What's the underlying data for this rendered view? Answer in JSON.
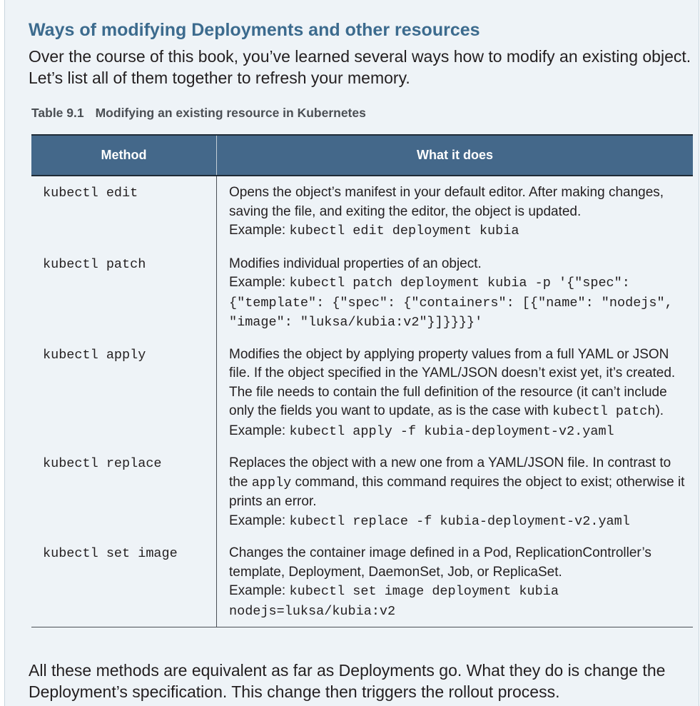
{
  "heading": "Ways of modifying Deployments and other resources",
  "intro": "Over the course of this book, you’ve learned several ways how to modify an existing object. Let’s list all of them together to refresh your memory.",
  "caption": {
    "number": "Table 9.1",
    "title": "Modifying an existing resource in Kubernetes"
  },
  "table": {
    "headers": [
      "Method",
      "What it does"
    ],
    "rows": [
      {
        "method": "kubectl edit",
        "desc": [
          {
            "t": "Opens the object’s manifest in your default editor. After making changes, saving the file, and exiting the editor, the object is updated."
          },
          {
            "br": true
          },
          {
            "t": "Example: "
          },
          {
            "c": "kubectl edit deployment kubia"
          }
        ]
      },
      {
        "method": "kubectl patch",
        "desc": [
          {
            "t": "Modifies individual properties of an object."
          },
          {
            "br": true
          },
          {
            "t": "Example: "
          },
          {
            "c": "kubectl patch deployment kubia -p '{\"spec\": {\"template\": {\"spec\": {\"containers\": [{\"name\": \"nodejs\", \"image\": \"luksa/kubia:v2\"}]}}}}'"
          }
        ]
      },
      {
        "method": "kubectl apply",
        "desc": [
          {
            "t": "Modifies the object by applying property values from a full YAML or JSON file. If the object specified in the YAML/JSON doesn’t exist yet, it’s created. The file needs to contain the full definition of the resource (it can’t include only the fields you want to update, as is the case with "
          },
          {
            "c": "kubectl patch"
          },
          {
            "t": ")."
          },
          {
            "br": true
          },
          {
            "t": "Example: "
          },
          {
            "c": "kubectl apply -f kubia-deployment-v2.yaml"
          }
        ]
      },
      {
        "method": "kubectl replace",
        "desc": [
          {
            "t": "Replaces the object with a new one from a YAML/JSON file. In con­trast to the "
          },
          {
            "c": "apply"
          },
          {
            "t": " command, this command requires the object to exist; otherwise it prints an error."
          },
          {
            "br": true
          },
          {
            "t": "Example: "
          },
          {
            "c": "kubectl replace -f kubia-deployment-v2.yaml"
          }
        ]
      },
      {
        "method": "kubectl set image",
        "desc": [
          {
            "t": "Changes the container image defined in a Pod, ReplicationControl­ler’s template, Deployment, DaemonSet, Job, or ReplicaSet."
          },
          {
            "br": true
          },
          {
            "t": "Example: "
          },
          {
            "c": "kubectl set image deployment kubia nodejs=luksa/kubia:v2"
          }
        ]
      }
    ]
  },
  "outro": "All these methods are equivalent as far as Deployments go. What they do is change the Deployment’s specification. This change then triggers the rollout process."
}
